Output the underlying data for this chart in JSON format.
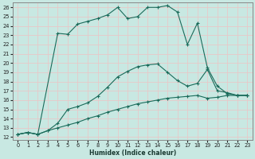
{
  "xlabel": "Humidex (Indice chaleur)",
  "bg_color": "#c8e8e2",
  "grid_color": "#b0d8d0",
  "line_color": "#1a6b5a",
  "xlim": [
    -0.5,
    23.5
  ],
  "ylim": [
    11.7,
    26.5
  ],
  "xticks": [
    0,
    1,
    2,
    3,
    4,
    5,
    6,
    7,
    8,
    9,
    10,
    11,
    12,
    13,
    14,
    15,
    16,
    17,
    18,
    19,
    20,
    21,
    22,
    23
  ],
  "yticks": [
    12,
    13,
    14,
    15,
    16,
    17,
    18,
    19,
    20,
    21,
    22,
    23,
    24,
    25,
    26
  ],
  "line1_x": [
    0,
    1,
    2,
    3,
    4,
    5,
    6,
    7,
    8,
    9,
    10,
    11,
    12,
    13,
    14,
    15,
    16,
    17,
    18,
    19,
    20,
    21,
    22,
    23
  ],
  "line1_y": [
    12.3,
    12.5,
    12.3,
    12.7,
    13.0,
    13.3,
    13.6,
    14.0,
    14.3,
    14.7,
    15.0,
    15.3,
    15.6,
    15.8,
    16.0,
    16.2,
    16.3,
    16.4,
    16.5,
    16.2,
    16.3,
    16.5,
    16.5,
    16.5
  ],
  "line2_x": [
    0,
    1,
    2,
    3,
    4,
    5,
    6,
    7,
    8,
    9,
    10,
    11,
    12,
    13,
    14,
    15,
    16,
    17,
    18,
    19,
    20,
    21,
    22,
    23
  ],
  "line2_y": [
    12.3,
    12.5,
    12.3,
    12.7,
    13.5,
    15.0,
    15.3,
    15.7,
    16.4,
    17.4,
    18.5,
    19.1,
    19.6,
    19.8,
    19.9,
    19.0,
    18.1,
    17.5,
    17.8,
    19.3,
    17.0,
    16.8,
    16.5,
    16.5
  ],
  "line3_x": [
    0,
    1,
    2,
    4,
    5,
    6,
    7,
    8,
    9,
    10,
    11,
    12,
    13,
    14,
    15,
    16,
    17,
    18,
    19,
    20,
    21,
    22,
    23
  ],
  "line3_y": [
    12.3,
    12.5,
    12.3,
    23.2,
    23.1,
    24.2,
    24.5,
    24.8,
    25.2,
    26.0,
    24.8,
    25.0,
    26.0,
    26.0,
    26.2,
    25.5,
    22.0,
    24.3,
    19.5,
    17.5,
    16.7,
    16.5,
    16.5
  ]
}
